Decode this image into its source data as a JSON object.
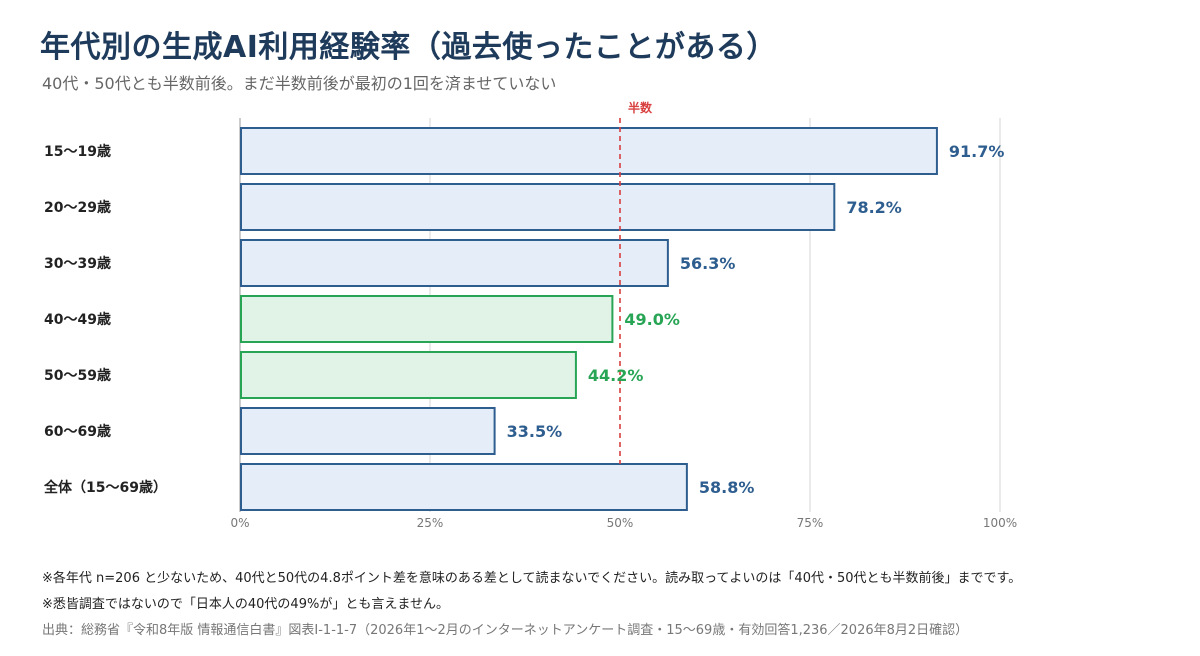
{
  "header": {
    "title": "年代別の生成AI利用経験率（過去使ったことがある）",
    "subtitle": "40代・50代とも半数前後。まだ半数前後が最初の1回を済ませていない"
  },
  "chart_data": {
    "type": "bar",
    "orientation": "horizontal",
    "categories": [
      "15〜19歳",
      "20〜29歳",
      "30〜39歳",
      "40〜49歳",
      "50〜59歳",
      "60〜69歳",
      "全体（15〜69歳）"
    ],
    "values": [
      91.7,
      78.2,
      56.3,
      49.0,
      44.2,
      33.5,
      58.8
    ],
    "value_labels": [
      "91.7%",
      "78.2%",
      "56.3%",
      "49.0%",
      "44.2%",
      "33.5%",
      "58.8%"
    ],
    "highlighted": [
      false,
      false,
      false,
      true,
      true,
      false,
      false
    ],
    "xlim": [
      0,
      100
    ],
    "x_ticks": [
      0,
      25,
      50,
      75,
      100
    ],
    "x_tick_labels": [
      "0%",
      "25%",
      "50%",
      "75%",
      "100%"
    ],
    "reference_line": {
      "value": 50,
      "label": "半数"
    },
    "grid": true,
    "colors": {
      "default_fill": "#e4edf8",
      "default_stroke": "#2e5e8f",
      "default_label": "#2e5e8f",
      "highlight_fill": "#e1f2e7",
      "highlight_stroke": "#27a555",
      "highlight_label": "#27a555",
      "reference_line": "#d94040",
      "grid": "#d6d6d6"
    }
  },
  "footer": {
    "note1": "※各年代 n=206 と少ないため、40代と50代の4.8ポイント差を意味のある差として読まないでください。読み取ってよいのは「40代・50代とも半数前後」までです。",
    "note2": "※悉皆調査ではないので「日本人の40代の49%が」とも言えません。",
    "source": "出典：総務省『令和8年版 情報通信白書』図表Ⅰ-1-1-7（2026年1〜2月のインターネットアンケート調査・15〜69歳・有効回答1,236／2026年8月2日確認）"
  }
}
